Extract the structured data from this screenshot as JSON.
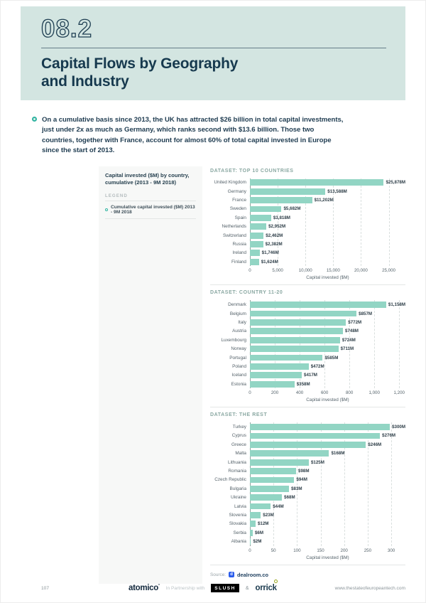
{
  "header": {
    "section_number": "08.2",
    "title_line1": "Capital Flows by Geography",
    "title_line2": "and Industry"
  },
  "intro": {
    "bullet_text": "On a cumulative basis since 2013, the UK has attracted $26 billion in total capital investments, just under 2x as much as Germany, which ranks second with $13.6 billion. Those two countries, together with France, account for almost 60% of total capital invested in Europe since the start of 2013."
  },
  "sidebar": {
    "chart_title": "Capital invested ($M) by country, cumulative (2013 - 9M 2018)",
    "legend_label": "LEGEND",
    "legend_item": "Cumulative capital invested ($M) 2013 - 9M 2018"
  },
  "colors": {
    "header_bg": "#d3e5e1",
    "bar_fill": "#92d5c4",
    "accent_teal": "#2fb3a0",
    "dark_navy": "#16394e",
    "dataset_label": "#8aa8a2"
  },
  "chart_data": [
    {
      "type": "bar",
      "orientation": "horizontal",
      "title": "DATASET: TOP 10 COUNTRIES",
      "categories": [
        "United Kingdom",
        "Germany",
        "France",
        "Sweden",
        "Spain",
        "Netherlands",
        "Switzerland",
        "Russia",
        "Ireland",
        "Finland"
      ],
      "values": [
        25878,
        13588,
        11202,
        5682,
        3818,
        2952,
        2462,
        2382,
        1746,
        1624
      ],
      "value_labels": [
        "$25,878M",
        "$13,588M",
        "$11,202M",
        "$5,682M",
        "$3,818M",
        "$2,952M",
        "$2,462M",
        "$2,382M",
        "$1,746M",
        "$1,624M"
      ],
      "xlabel": "Capital invested ($M)",
      "xlim": [
        0,
        28000
      ],
      "ticks": [
        0,
        5000,
        10000,
        15000,
        20000,
        25000
      ],
      "tick_labels": [
        "0",
        "5,000",
        "10,000",
        "15,000",
        "20,000",
        "25,000"
      ],
      "grid": "dashed-vertical",
      "legend_position": "none"
    },
    {
      "type": "bar",
      "orientation": "horizontal",
      "title": "DATASET: COUNTRY 11-20",
      "categories": [
        "Denmark",
        "Belgium",
        "Italy",
        "Austria",
        "Luxembourg",
        "Norway",
        "Portugal",
        "Poland",
        "Iceland",
        "Estonia"
      ],
      "values": [
        1158,
        857,
        772,
        748,
        724,
        711,
        585,
        472,
        417,
        358
      ],
      "value_labels": [
        "$1,158M",
        "$857M",
        "$772M",
        "$748M",
        "$724M",
        "$711M",
        "$585M",
        "$472M",
        "$417M",
        "$358M"
      ],
      "xlabel": "Capital invested ($M)",
      "xlim": [
        0,
        1250
      ],
      "ticks": [
        0,
        200,
        400,
        600,
        800,
        1000,
        1200
      ],
      "tick_labels": [
        "0",
        "200",
        "400",
        "600",
        "800",
        "1,000",
        "1,200"
      ],
      "grid": "dashed-vertical",
      "legend_position": "none"
    },
    {
      "type": "bar",
      "orientation": "horizontal",
      "title": "DATASET: THE REST",
      "categories": [
        "Turkey",
        "Cyprus",
        "Greece",
        "Malta",
        "Lithuania",
        "Romania",
        "Czech Republic",
        "Bulgaria",
        "Ukraine",
        "Latvia",
        "Slovenia",
        "Slovakia",
        "Serbia",
        "Albania"
      ],
      "values": [
        300,
        276,
        246,
        168,
        125,
        98,
        94,
        83,
        68,
        44,
        23,
        12,
        6,
        2
      ],
      "value_labels": [
        "$300M",
        "$276M",
        "$246M",
        "$168M",
        "$125M",
        "$98M",
        "$94M",
        "$83M",
        "$68M",
        "$44M",
        "$23M",
        "$12M",
        "$6M",
        "$2M"
      ],
      "xlabel": "Capital invested ($M)",
      "xlim": [
        0,
        330
      ],
      "ticks": [
        0,
        50,
        100,
        150,
        200,
        250,
        300
      ],
      "tick_labels": [
        "0",
        "50",
        "100",
        "150",
        "200",
        "250",
        "300"
      ],
      "grid": "dashed-vertical",
      "legend_position": "none"
    }
  ],
  "source": {
    "label": "Source:",
    "logo_letter": "d",
    "name": "dealroom.co"
  },
  "footer": {
    "page_number": "107",
    "atomico": "atomico",
    "atomico_mark": "°",
    "partnership": "In Partnership with",
    "slush": "SLUSH",
    "amp": "&",
    "orrick": "orrick",
    "url": "www.thestateofeuropeantech.com"
  }
}
